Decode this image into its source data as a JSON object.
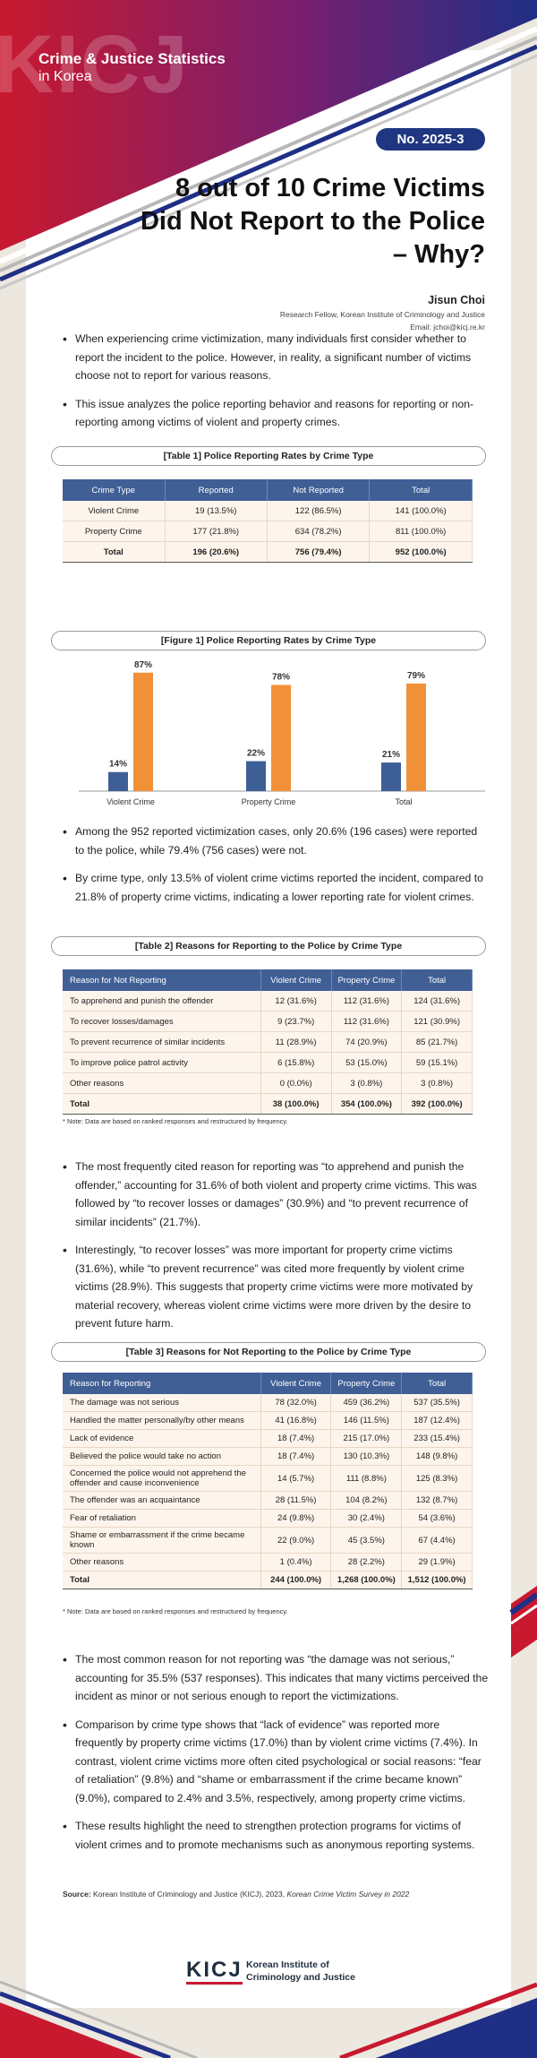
{
  "header": {
    "watermark": "KICJ",
    "series": "Crime & Justice Statistics",
    "subtitle": "in Korea",
    "issue": "No. 2025-3",
    "title": [
      "8 out of 10 Crime Victims",
      "Did Not Report to the Police",
      "– Why?"
    ]
  },
  "author": {
    "name": "Jisun Choi",
    "affiliation": "Research Fellow, Korean Institute of Criminology and Justice",
    "email": "Email: jchoi@kicj.re.kr"
  },
  "intro": [
    "When experiencing crime victimization, many individuals first consider whether to report the incident to the police. However, in reality, a significant number of victims choose not to report for various reasons.",
    "This issue analyzes the police reporting behavior and reasons for reporting or non-reporting among victims of violent and property crimes."
  ],
  "table1": {
    "title": "[Table 1] Police Reporting Rates by Crime Type",
    "columns": [
      "Crime Type",
      "Reported",
      "Not Reported",
      "Total"
    ],
    "rows": [
      [
        "Violent Crime",
        "19 (13.5%)",
        "122 (86.5%)",
        "141 (100.0%)"
      ],
      [
        "Property Crime",
        "177 (21.8%)",
        "634 (78.2%)",
        "811 (100.0%)"
      ],
      [
        "Total",
        "196 (20.6%)",
        "756 (79.4%)",
        "952 (100.0%)"
      ]
    ]
  },
  "chart_data": {
    "type": "bar",
    "title": "[Figure 1] Police Reporting Rates by Crime Type",
    "categories": [
      "Violent Crime",
      "Property Crime",
      "Total"
    ],
    "series": [
      {
        "color": "#3e5f96",
        "values": [
          14,
          22,
          21
        ],
        "value_labels": [
          "14%",
          "22%",
          "21%"
        ]
      },
      {
        "color": "#f0913a",
        "values": [
          87,
          78,
          79
        ],
        "value_labels": [
          "87%",
          "78%",
          "79%"
        ]
      }
    ],
    "ylim": [
      0,
      100
    ]
  },
  "findings1": [
    "Among the 952 reported victimization cases, only 20.6% (196 cases) were reported to the police, while 79.4% (756 cases) were not.",
    "By crime type, only 13.5% of violent crime victims reported the incident, compared to 21.8% of property crime victims, indicating a lower reporting rate for violent crimes."
  ],
  "table2": {
    "title": "[Table 2] Reasons for Reporting to the Police by Crime Type",
    "columns": [
      "Reason for Not Reporting",
      "Violent Crime",
      "Property Crime",
      "Total"
    ],
    "rows": [
      [
        "To apprehend and punish the offender",
        "12 (31.6%)",
        "112 (31.6%)",
        "124 (31.6%)"
      ],
      [
        "To recover losses/damages",
        "9 (23.7%)",
        "112 (31.6%)",
        "121 (30.9%)"
      ],
      [
        "To prevent recurrence of similar incidents",
        "11 (28.9%)",
        "74 (20.9%)",
        "85 (21.7%)"
      ],
      [
        "To improve police patrol activity",
        "6 (15.8%)",
        "53 (15.0%)",
        "59 (15.1%)"
      ],
      [
        "Other reasons",
        "0 (0.0%)",
        "3 (0.8%)",
        "3 (0.8%)"
      ],
      [
        "Total",
        "38 (100.0%)",
        "354 (100.0%)",
        "392 (100.0%)"
      ]
    ],
    "note": "* Note: Data are based on ranked responses and restructured by frequency."
  },
  "findings2": [
    "The most frequently cited reason for reporting was “to apprehend and punish the offender,” accounting for 31.6% of both violent and property crime victims. This was followed by “to recover losses or damages” (30.9%) and “to prevent recurrence of similar incidents” (21.7%).",
    "Interestingly, “to recover losses” was more important for property crime victims (31.6%), while “to prevent recurrence” was cited more frequently by violent crime victims (28.9%). This suggests that property crime victims were more motivated by material recovery, whereas violent crime victims were more driven by the desire to prevent future harm."
  ],
  "table3": {
    "title": "[Table 3] Reasons for Not Reporting to the Police by Crime Type",
    "columns": [
      "Reason for Reporting",
      "Violent Crime",
      "Property Crime",
      "Total"
    ],
    "rows": [
      [
        "The damage was not serious",
        "78 (32.0%)",
        "459 (36.2%)",
        "537 (35.5%)"
      ],
      [
        "Handled the matter personally/by other means",
        "41 (16.8%)",
        "146 (11.5%)",
        "187 (12.4%)"
      ],
      [
        "Lack of evidence",
        "18 (7.4%)",
        "215 (17.0%)",
        "233 (15.4%)"
      ],
      [
        "Believed the police would take no action",
        "18 (7.4%)",
        "130 (10.3%)",
        "148 (9.8%)"
      ],
      [
        "Concerned the police would not apprehend the offender and cause inconvenience",
        "14 (5.7%)",
        "111 (8.8%)",
        "125 (8.3%)"
      ],
      [
        "The offender was an acquaintance",
        "28 (11.5%)",
        "104 (8.2%)",
        "132 (8.7%)"
      ],
      [
        "Fear of retaliation",
        "24 (9.8%)",
        "30 (2.4%)",
        "54 (3.6%)"
      ],
      [
        "Shame or embarrassment if the crime became known",
        "22 (9.0%)",
        "45 (3.5%)",
        "67 (4.4%)"
      ],
      [
        "Other reasons",
        "1 (0.4%)",
        "28 (2.2%)",
        "29 (1.9%)"
      ],
      [
        "Total",
        "244 (100.0%)",
        "1,268 (100.0%)",
        "1,512 (100.0%)"
      ]
    ],
    "note": "* Note: Data are based on ranked responses and restructured by frequency."
  },
  "conclusions": [
    "The most common reason for not reporting was “the damage was not serious,” accounting for 35.5% (537 responses). This indicates that many victims perceived the incident as minor or not serious enough to report the victimizations.",
    "Comparison by crime type shows that “lack of evidence” was reported more frequently by property crime victims (17.0%) than by violent crime victims (7.4%). In contrast, violent crime victims more often cited psychological or social reasons: “fear of retaliation” (9.8%) and “shame or embarrassment if the crime became known” (9.0%), compared to 2.4% and 3.5%, respectively, among property crime victims.",
    "These results highlight the need to strengthen protection programs for victims of violent crimes and to promote mechanisms such as anonymous reporting systems."
  ],
  "source": {
    "label": "Source:",
    "text": "Korean Institute of Criminology and Justice (KICJ), 2023,",
    "publication": "Korean Crime Victim Survey in 2022"
  },
  "footer": {
    "logo": "KICJ",
    "org": [
      "Korean Institute of",
      "Criminology and Justice"
    ]
  }
}
